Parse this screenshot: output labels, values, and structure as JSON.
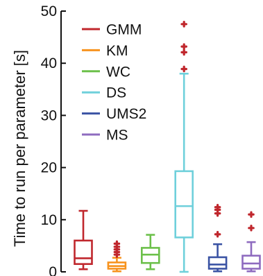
{
  "chart_data": {
    "type": "boxplot",
    "ylabel": "Time to run per parameter [s]",
    "ylim": [
      0,
      50
    ],
    "yticks": [
      0,
      10,
      20,
      30,
      40,
      50
    ],
    "grid": false,
    "legend": {
      "placement": "top-left",
      "entries": [
        {
          "name": "GMM",
          "color": "#c0272d"
        },
        {
          "name": "KM",
          "color": "#f7931e"
        },
        {
          "name": "WC",
          "color": "#6cc04a"
        },
        {
          "name": "DS",
          "color": "#6fd0db"
        },
        {
          "name": "UMS2",
          "color": "#3a53a4"
        },
        {
          "name": "MS",
          "color": "#8e6bbf"
        }
      ]
    },
    "outlier_color": "#c0272d",
    "series": [
      {
        "name": "GMM",
        "color": "#c0272d",
        "whisker_low": 0.5,
        "q1": 1.5,
        "median": 2.6,
        "q3": 6.0,
        "whisker_high": 11.7,
        "outliers": []
      },
      {
        "name": "KM",
        "color": "#f7931e",
        "whisker_low": 0.1,
        "q1": 0.6,
        "median": 1.1,
        "q3": 1.8,
        "whisker_high": 2.7,
        "outliers": [
          3.3,
          3.8,
          4.3,
          4.8,
          5.4
        ]
      },
      {
        "name": "WC",
        "color": "#6cc04a",
        "whisker_low": 0.5,
        "q1": 1.7,
        "median": 3.3,
        "q3": 4.6,
        "whisker_high": 7.1,
        "outliers": []
      },
      {
        "name": "DS",
        "color": "#6fd0db",
        "whisker_low": 0.0,
        "q1": 6.6,
        "median": 12.6,
        "q3": 19.3,
        "whisker_high": 38.0,
        "outliers": [
          38.9,
          42.1,
          43.2,
          47.5
        ]
      },
      {
        "name": "UMS2",
        "color": "#3a53a4",
        "whisker_low": 0.1,
        "q1": 0.6,
        "median": 1.4,
        "q3": 2.8,
        "whisker_high": 5.3,
        "outliers": [
          7.2,
          11.2,
          11.9,
          12.4
        ]
      },
      {
        "name": "MS",
        "color": "#8e6bbf",
        "whisker_low": 0.1,
        "q1": 0.6,
        "median": 1.6,
        "q3": 3.1,
        "whisker_high": 5.7,
        "outliers": [
          8.4,
          11.0
        ]
      }
    ]
  }
}
